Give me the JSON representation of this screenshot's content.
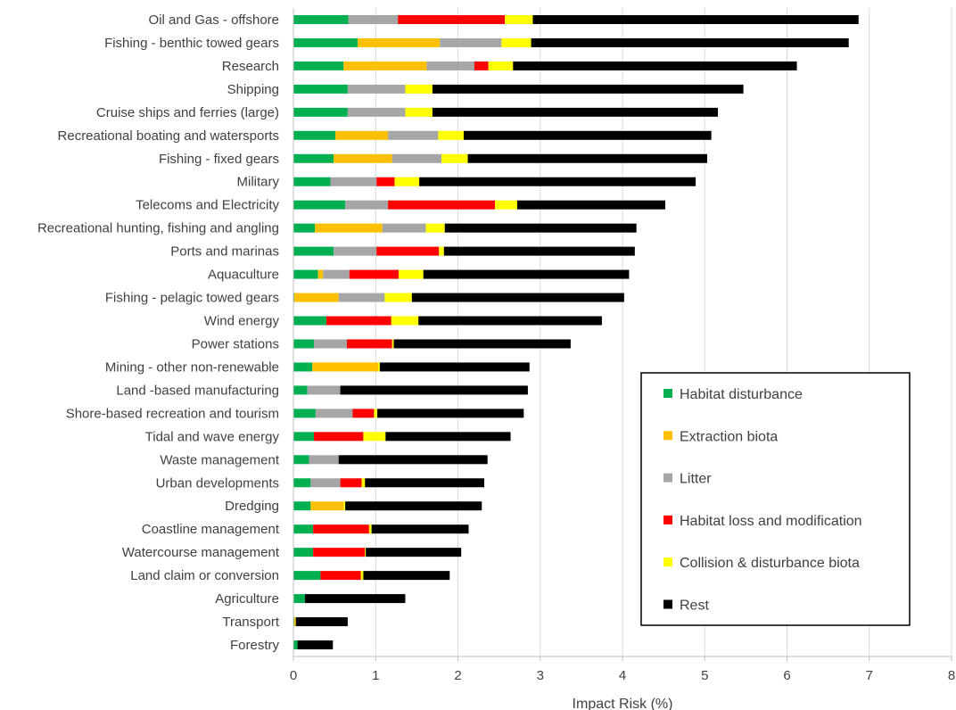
{
  "chart_data": {
    "type": "bar",
    "orientation": "horizontal",
    "stacked": true,
    "title": "",
    "xlabel": "Impact Risk (%)",
    "ylabel": "",
    "xlim": [
      0,
      8
    ],
    "xticks": [
      0,
      1,
      2,
      3,
      4,
      5,
      6,
      7,
      8
    ],
    "grid": "vertical",
    "legend_position": "bottom-right",
    "categories": [
      "Oil and Gas - offshore",
      "Fishing - benthic towed gears",
      "Research",
      "Shipping",
      "Cruise ships and ferries (large)",
      "Recreational boating and watersports",
      "Fishing - fixed gears",
      "Military",
      "Telecoms and Electricity",
      "Recreational hunting, fishing and angling",
      "Ports and marinas",
      "Aquaculture",
      "Fishing - pelagic towed gears",
      "Wind energy",
      "Power stations",
      "Mining - other non-renewable",
      "Land -based manufacturing",
      "Shore-based recreation and tourism",
      "Tidal and wave energy",
      "Waste management",
      "Urban developments",
      "Dredging",
      "Coastline management",
      "Watercourse management",
      "Land claim or conversion",
      "Agriculture",
      "Transport",
      "Forestry"
    ],
    "series": [
      {
        "name": "Habitat disturbance",
        "color": "#00b050",
        "values": [
          0.67,
          0.78,
          0.61,
          0.66,
          0.66,
          0.51,
          0.49,
          0.45,
          0.63,
          0.26,
          0.49,
          0.3,
          0.01,
          0.4,
          0.25,
          0.23,
          0.17,
          0.27,
          0.25,
          0.19,
          0.21,
          0.21,
          0.24,
          0.24,
          0.33,
          0.14,
          0.01,
          0.05
        ]
      },
      {
        "name": "Extraction biota",
        "color": "#ffc000",
        "values": [
          0,
          1.0,
          1.01,
          0,
          0,
          0.64,
          0.71,
          0,
          0,
          0.82,
          0,
          0.06,
          0.54,
          0,
          0,
          0.8,
          0,
          0,
          0,
          0,
          0,
          0.4,
          0,
          0,
          0,
          0,
          0.02,
          0
        ]
      },
      {
        "name": "Litter",
        "color": "#a6a6a6",
        "values": [
          0.6,
          0.75,
          0.58,
          0.7,
          0.7,
          0.61,
          0.6,
          0.56,
          0.52,
          0.53,
          0.52,
          0.32,
          0.56,
          0,
          0.4,
          0,
          0.4,
          0.45,
          0,
          0.36,
          0.36,
          0,
          0,
          0,
          0,
          0,
          0,
          0
        ]
      },
      {
        "name": "Habitat loss and modification",
        "color": "#ff0000",
        "values": [
          1.3,
          0,
          0.17,
          0,
          0,
          0,
          0,
          0.22,
          1.3,
          0,
          0.76,
          0.6,
          0,
          0.79,
          0.55,
          0,
          0,
          0.26,
          0.6,
          0,
          0.26,
          0,
          0.68,
          0.63,
          0.49,
          0,
          0,
          0
        ]
      },
      {
        "name": "Collision & disturbance biota",
        "color": "#ffff00",
        "values": [
          0.34,
          0.36,
          0.3,
          0.33,
          0.33,
          0.31,
          0.32,
          0.3,
          0.27,
          0.23,
          0.06,
          0.3,
          0.33,
          0.33,
          0.02,
          0.02,
          0,
          0.04,
          0.27,
          0,
          0.04,
          0.02,
          0.03,
          0.01,
          0.03,
          0,
          0,
          0
        ]
      },
      {
        "name": "Rest",
        "color": "#000000",
        "values": [
          3.96,
          3.86,
          3.45,
          3.78,
          3.47,
          3.01,
          2.91,
          3.36,
          1.8,
          2.33,
          2.32,
          2.5,
          2.58,
          2.23,
          2.15,
          1.82,
          2.28,
          1.78,
          1.52,
          1.81,
          1.45,
          1.66,
          1.18,
          1.16,
          1.05,
          1.22,
          0.63,
          0.43
        ]
      }
    ]
  }
}
